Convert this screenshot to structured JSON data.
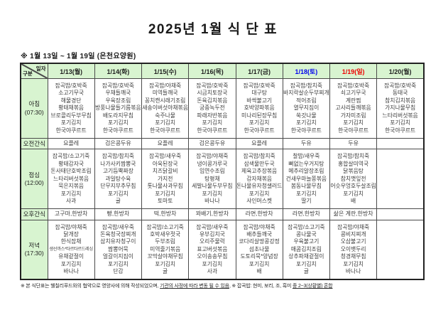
{
  "title": "2025년 1월 식 단 표",
  "subtitle": "※  1월 13일 ~ 1월 19일 (은천요양원)",
  "corner": {
    "top": "일자",
    "bottom": "구분"
  },
  "colors": {
    "header_bg": "#d8f4d0",
    "grid": "#4a4a4a",
    "outer": "#222222",
    "text": "#3d3d3d",
    "weekday": "#1f1f1f",
    "saturday": "#0000ee",
    "sunday": "#ee0000"
  },
  "columns": [
    {
      "label": "1/13(월)",
      "color": "#1f1f1f"
    },
    {
      "label": "1/14(화)",
      "color": "#1f1f1f"
    },
    {
      "label": "1/15(수)",
      "color": "#1f1f1f"
    },
    {
      "label": "1/16(목)",
      "color": "#1f1f1f"
    },
    {
      "label": "1/17(금)",
      "color": "#1f1f1f"
    },
    {
      "label": "1/18(토)",
      "color": "#0000ee"
    },
    {
      "label": "1/19(일)",
      "color": "#ee0000"
    },
    {
      "label": "1/20(월)",
      "color": "#1f1f1f"
    }
  ],
  "rows": [
    {
      "kind": "meal",
      "label": "아침",
      "time": "(07:30)",
      "cells": [
        [
          "잡곡밥/호박죽",
          "소고기무국",
          "해물경단",
          "황태채볶음",
          "브로콜리두부무침",
          "포기김치",
          "한국야쿠르트"
        ],
        [
          "잡곡밥/호박죽",
          "우채들깨국",
          "우육장조림",
          "방풍나물들기름볶음",
          "배도라지무침",
          "포기김치",
          "한국야쿠르트"
        ],
        [
          "잡곡밥/야채죽",
          "미역들깨국",
          "꽁치캔시래기조림",
          "새송이버섯야채볶음",
          "숙주나물",
          "포기김치",
          "한국야쿠르트"
        ],
        [
          "잡곡밥/호박죽",
          "시금치토장국",
          "돈육김치볶음",
          "궁중녹두전",
          "파래자반볶음",
          "포기김치",
          "한국야쿠르트"
        ],
        [
          "잡곡밥/호박죽",
          "대구탕",
          "바싹불고기",
          "호박양파볶음",
          "미나리된장무침",
          "포기김치",
          "한국야쿠르트"
        ],
        [
          "잡곡밥/참치죽",
          "바지락살순두부찌개",
          "적어조림",
          "열무지짐이",
          "쑥갓나물",
          "포기김치",
          "한국야쿠르트"
        ],
        [
          "잡곡밥/호박죽",
          "쇠고기무국",
          "계란찜",
          "고사리들깨볶음",
          "가자미조림",
          "포기김치",
          "한국야쿠르트"
        ],
        [
          "잡곡밥/호박죽",
          "동태국",
          "참치김치볶음",
          "가지나물무침",
          "느타리버섯볶음",
          "포기김치",
          "한국야쿠르트"
        ]
      ]
    },
    {
      "kind": "snack",
      "label": "오전간식",
      "time": "",
      "cells": [
        [
          "요플레"
        ],
        [
          "검은콩두유"
        ],
        [
          "요플레"
        ],
        [
          "검은콩두유"
        ],
        [
          "요플레"
        ],
        [
          "두유"
        ],
        [
          "두유"
        ],
        []
      ]
    },
    {
      "kind": "meal",
      "label": "점심",
      "time": "(12:00)",
      "cells": [
        [
          "잡곡밥/소고기죽",
          "황태감자국",
          "돈사태단호박조림",
          "느타리버섯볶음",
          "묵은지볶음",
          "포기김치",
          "사과"
        ],
        [
          "잡곡밥/참치죽",
          "나가사키짬뽕국",
          "고기듬뿍짜장",
          "과일탕수육",
          "단무지부추무침",
          "포기김치",
          "귤"
        ],
        [
          "잡곡밥/새우죽",
          "아욱된장국",
          "치즈닭갈비",
          "가지전",
          "톳나물사과무침",
          "포기김치",
          "토마토"
        ],
        [
          "잡곡밥/야채죽",
          "냉이콩가루국",
          "임연수조림",
          "탕평채",
          "세발나물두부무침",
          "포기김치",
          "바나나"
        ],
        [
          "잡곡밥/참치죽",
          "삼색물만두국",
          "제육고추장볶음",
          "감자채볶음",
          "돈나물유자청샐러드",
          "포기김치",
          "샤인머스켓"
        ],
        [
          "찰밥/새우죽",
          "뼈없는우거지탕",
          "메추리알장조림",
          "건새우마늘쫑볶음",
          "봄동나물무침",
          "포기김치",
          "딸기"
        ],
        [
          "잡곡밥/참치죽",
          "홍합살미역국",
          "닭볶음탕",
          "참치깻잎전",
          "어슷우엉호두살조림",
          "포기김치",
          "배"
        ],
        []
      ]
    },
    {
      "kind": "snack",
      "label": "오후간식",
      "time": "",
      "cells": [
        [
          "고구마,한방차"
        ],
        [
          "빵,한방차"
        ],
        [
          "떡,한방차"
        ],
        [
          "꽈배기,한방차"
        ],
        [
          "라면,한방차"
        ],
        [
          "라면,한방차"
        ],
        [
          "삶은 계란,한방차"
        ],
        []
      ]
    },
    {
      "kind": "meal",
      "label": "저녁",
      "time": "(17:30)",
      "cells": [
        [
          "잡곡밥/야채죽",
          "닭개장",
          "한식잡채",
          "생선까스*타르타르드레싱",
          "유채겉절이",
          "포기김치",
          "바나나"
        ],
        [
          "잡곡밥/새우죽",
          "돈육청국장찌개",
          "삼치유자청구이",
          "짬뽕어묵",
          "얼갈이지짐이",
          "포기김치",
          "단감"
        ],
        [
          "잡곡밥/소고기죽",
          "호박새우젓국",
          "두부조림",
          "미역줄기볶음",
          "꼬막살야채무침",
          "포기김치",
          "귤"
        ],
        [
          "잡곡밥/새우죽",
          "유부김치국",
          "오리주물럭",
          "표고버섯볶음",
          "오이송송무침",
          "포기김치",
          "사과"
        ],
        [
          "잡곡밥/야채죽",
          "배추들깨국",
          "코다리살땅콩강정",
          "섬초나물",
          "도토리묵*양념장",
          "포기김치",
          "배"
        ],
        [
          "잡곡밥/소고기죽",
          "콩나물국",
          "우육불고기",
          "매콤김치조림",
          "상추파채겉절이",
          "포기김치",
          "귤"
        ],
        [
          "잡곡밥/야채죽",
          "콩비지찌개",
          "오삼불고기",
          "오이뱃두리",
          "청경채무침",
          "포기김치",
          "바나나"
        ],
        []
      ]
    }
  ],
  "footnote": {
    "p1": "※ 본 식단표는 웰칠리푸드와의 협약으로 영양사에 의해 작성되었으며, ",
    "p2": "기관의 사정에 따라 변동 될 수 있음",
    "p3": ", ※ 잡곡밥: 현미, 보리, 조, 흑미 ",
    "p4": "중 2~3(상황별) 혼합"
  }
}
